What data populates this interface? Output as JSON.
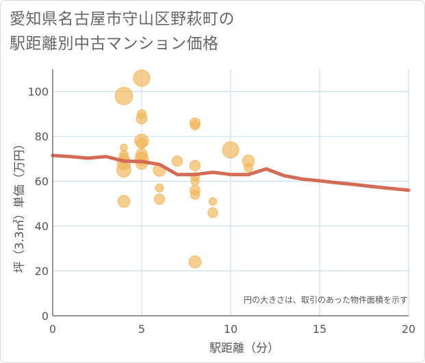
{
  "title": {
    "line1": "愛知県名古屋市守山区野萩町の",
    "line2": "駅距離別中古マンション価格"
  },
  "note": "円の大きさは、取引のあった物件面積を示す",
  "colors": {
    "bubble": "#f2b75b",
    "line": "#d46b57",
    "grid": "#c8d6e5",
    "axis": "#555555"
  },
  "chart_data": {
    "type": "scatter",
    "xlabel": "駅距離（分）",
    "ylabel": "坪（3.3㎡）単価（万円）",
    "xlim": [
      0,
      20
    ],
    "ylim": [
      0,
      110
    ],
    "xticks": [
      0,
      5,
      10,
      15,
      20
    ],
    "yticks": [
      0,
      20,
      40,
      60,
      80,
      100
    ],
    "grid": true,
    "points": [
      {
        "x": 4,
        "y": 98,
        "size": 3.2
      },
      {
        "x": 5,
        "y": 106,
        "size": 3.0
      },
      {
        "x": 5,
        "y": 90,
        "size": 1.6
      },
      {
        "x": 5,
        "y": 88,
        "size": 2.0
      },
      {
        "x": 4,
        "y": 75,
        "size": 1.3
      },
      {
        "x": 4,
        "y": 72,
        "size": 1.5
      },
      {
        "x": 4,
        "y": 70,
        "size": 2.0
      },
      {
        "x": 4,
        "y": 68,
        "size": 2.4
      },
      {
        "x": 4,
        "y": 65,
        "size": 2.6
      },
      {
        "x": 4,
        "y": 51,
        "size": 2.2
      },
      {
        "x": 5,
        "y": 78,
        "size": 2.5
      },
      {
        "x": 5,
        "y": 77,
        "size": 1.9
      },
      {
        "x": 5,
        "y": 72,
        "size": 2.1
      },
      {
        "x": 5,
        "y": 70,
        "size": 2.4
      },
      {
        "x": 5,
        "y": 68,
        "size": 2.2
      },
      {
        "x": 6,
        "y": 65,
        "size": 2.3
      },
      {
        "x": 6,
        "y": 57,
        "size": 1.5
      },
      {
        "x": 6,
        "y": 52,
        "size": 1.9
      },
      {
        "x": 7,
        "y": 69,
        "size": 1.9
      },
      {
        "x": 8,
        "y": 86,
        "size": 1.9
      },
      {
        "x": 8,
        "y": 85,
        "size": 1.7
      },
      {
        "x": 8,
        "y": 67,
        "size": 1.9
      },
      {
        "x": 8,
        "y": 62,
        "size": 1.6
      },
      {
        "x": 8,
        "y": 60,
        "size": 1.5
      },
      {
        "x": 8,
        "y": 56,
        "size": 1.8
      },
      {
        "x": 8,
        "y": 54,
        "size": 1.7
      },
      {
        "x": 8,
        "y": 24,
        "size": 2.2
      },
      {
        "x": 9,
        "y": 51,
        "size": 1.4
      },
      {
        "x": 9,
        "y": 46,
        "size": 1.8
      },
      {
        "x": 10,
        "y": 74,
        "size": 3.0
      },
      {
        "x": 11,
        "y": 69,
        "size": 2.2
      },
      {
        "x": 11,
        "y": 66,
        "size": 1.6
      }
    ],
    "trend": {
      "x": [
        0,
        1,
        2,
        3,
        4,
        5,
        6,
        7,
        8,
        9,
        10,
        11,
        12,
        13,
        14,
        15,
        16,
        17,
        18,
        19,
        20
      ],
      "y": [
        71.5,
        71,
        70.3,
        71,
        69,
        68.8,
        67.5,
        63,
        63,
        64,
        63,
        63,
        65.5,
        62.5,
        61,
        60.2,
        59.3,
        58.5,
        57.6,
        56.8,
        56
      ]
    }
  }
}
